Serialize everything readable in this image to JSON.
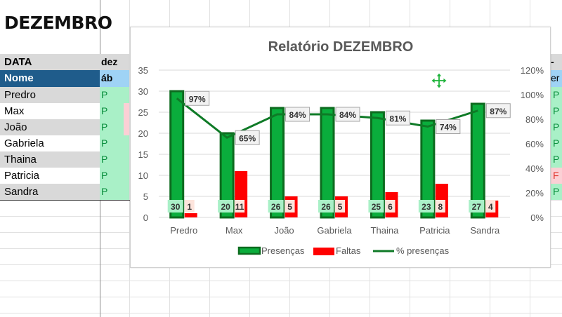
{
  "sheet": {
    "title": "DEZEMBRO",
    "header_data": "DATA",
    "header_col_c_top": "dez",
    "header_col_c_bottom": "áb",
    "header_right_top": "-de",
    "header_right_bottom": "er",
    "header_nome": "Nome",
    "names": [
      "Predro",
      "Max",
      "João",
      "Gabriela",
      "Thaina",
      "Patricia",
      "Sandra"
    ],
    "col_c_marks": [
      "P",
      "P",
      "P",
      "P",
      "P",
      "P",
      "P"
    ],
    "col_right_marks": [
      "P",
      "P",
      "P",
      "P",
      "P",
      "F",
      "P"
    ]
  },
  "colors": {
    "presence": "#0aad3c",
    "presence_border": "#0d6b1f",
    "absence": "#ff0000",
    "line": "#0e7a26",
    "name_header": "#1f5c8b",
    "presence_cell": "#a9f0c7",
    "absence_cell": "#fbd0d5"
  },
  "icons": {
    "move": "move-cross-icon"
  },
  "chart_data": {
    "type": "bar",
    "title": "Relatório DEZEMBRO",
    "categories": [
      "Predro",
      "Max",
      "João",
      "Gabriela",
      "Thaina",
      "Patricia",
      "Sandra"
    ],
    "series": [
      {
        "name": "Presenças",
        "type": "bar",
        "values": [
          30,
          20,
          26,
          26,
          25,
          23,
          27
        ]
      },
      {
        "name": "Faltas",
        "type": "bar",
        "values": [
          1,
          11,
          5,
          5,
          6,
          8,
          4
        ]
      },
      {
        "name": "% presenças",
        "type": "line",
        "axis": "secondary",
        "values": [
          0.97,
          0.65,
          0.84,
          0.84,
          0.81,
          0.74,
          0.87
        ],
        "labels": [
          "97%",
          "65%",
          "84%",
          "84%",
          "81%",
          "74%",
          "87%"
        ]
      }
    ],
    "ylim": [
      0,
      35
    ],
    "yticks": [
      "0",
      "5",
      "10",
      "15",
      "20",
      "25",
      "30",
      "35"
    ],
    "y2lim": [
      0,
      1.2
    ],
    "y2ticks": [
      "0%",
      "20%",
      "40%",
      "60%",
      "80%",
      "100%",
      "120%"
    ],
    "grid": true,
    "legend": "bottom"
  }
}
